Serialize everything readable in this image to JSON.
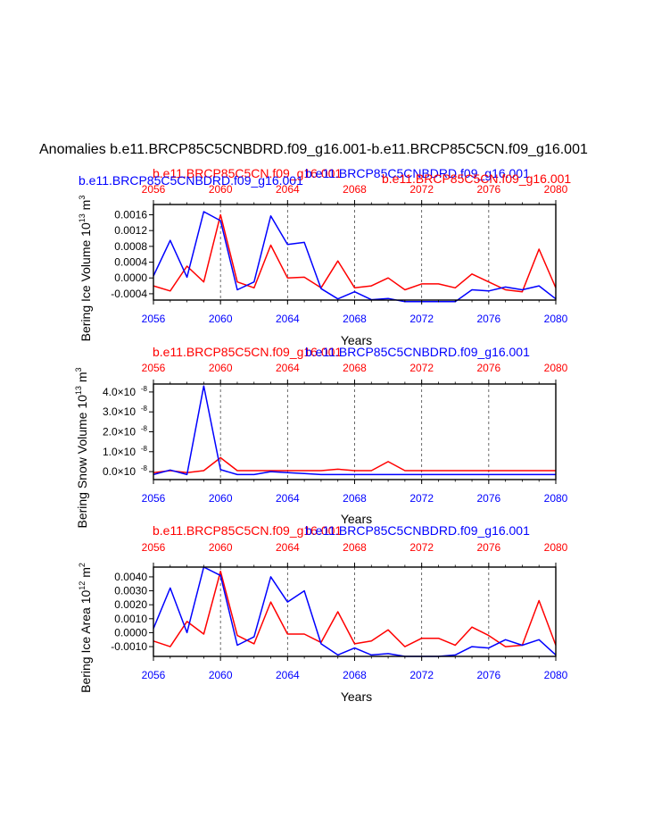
{
  "title": "Anomalies b.e11.BRCP85C5CNBDRD.f09_g16.001-b.e11.BRCP85C5CN.f09_g16.001",
  "colors": {
    "red": "#ff0000",
    "blue": "#0000ff",
    "black": "#000000",
    "grid": "#444444"
  },
  "chart_data": [
    {
      "type": "line",
      "ylabel_main": "Bering Ice Volume 10",
      "ylabel_exp": "13",
      "ylabel_unit_main": "m",
      "ylabel_unit_exp": "3",
      "xlabel": "Years",
      "xlim": [
        2056,
        2080
      ],
      "ylim": [
        -0.00056,
        0.00186
      ],
      "xticks": [
        2056,
        2060,
        2064,
        2068,
        2072,
        2076,
        2080
      ],
      "yticks": [
        -0.0004,
        0.0,
        0.0004,
        0.0008,
        0.0012,
        0.0016
      ],
      "ytick_labels": [
        "-0.0004",
        "0.0000",
        "0.0004",
        "0.0008",
        "0.0012",
        "0.0016"
      ],
      "grid_x": [
        2060,
        2064,
        2068,
        2072,
        2076
      ],
      "blue_label": "b.e11.BRCP85C5CNBDRD.f09_g16.001",
      "red_label": "b.e11.BRCP85C5CN.f09_g16.001",
      "x": [
        2056,
        2057,
        2058,
        2059,
        2060,
        2061,
        2062,
        2063,
        2064,
        2065,
        2066,
        2067,
        2068,
        2069,
        2070,
        2071,
        2072,
        2073,
        2074,
        2075,
        2076,
        2077,
        2078,
        2079,
        2080
      ],
      "series": [
        {
          "name": "b.e11.BRCP85C5CN.f09_g16.001",
          "color": "red",
          "values": [
            -0.0002,
            -0.00033,
            0.0003,
            -0.0001,
            0.0016,
            -0.0001,
            -0.00025,
            0.00083,
            0.0,
            2e-05,
            -0.00025,
            0.00043,
            -0.00025,
            -0.0002,
            0.0,
            -0.0003,
            -0.00015,
            -0.00015,
            -0.00025,
            0.0001,
            -0.0001,
            -0.0003,
            -0.00035,
            0.00073,
            -0.00025
          ]
        },
        {
          "name": "b.e11.BRCP85C5CNBDRD.f09_g16.001",
          "color": "blue",
          "values": [
            5e-05,
            0.00095,
            2e-05,
            0.00168,
            0.00145,
            -0.0003,
            -0.0001,
            0.00157,
            0.00085,
            0.0009,
            -0.00027,
            -0.00053,
            -0.00035,
            -0.00055,
            -0.00052,
            -0.0006,
            -0.0006,
            -0.0006,
            -0.0006,
            -0.0003,
            -0.00033,
            -0.00023,
            -0.0003,
            -0.0002,
            -0.00053
          ]
        }
      ]
    },
    {
      "type": "line",
      "ylabel_main": "Bering Snow Volume 10",
      "ylabel_exp": "13",
      "ylabel_unit_main": "m",
      "ylabel_unit_exp": "3",
      "xlabel": "Years",
      "xlim": [
        2056,
        2080
      ],
      "ylim": [
        -4e-09,
        4.4e-08
      ],
      "xticks": [
        2056,
        2060,
        2064,
        2068,
        2072,
        2076,
        2080
      ],
      "yticks": [
        0,
        1e-08,
        2e-08,
        3e-08,
        4e-08
      ],
      "ytick_labels": [
        "0.0×10",
        "1.0×10",
        "2.0×10",
        "3.0×10",
        "4.0×10"
      ],
      "ytick_exp": "-8",
      "grid_x": [
        2060,
        2064,
        2068,
        2072,
        2076
      ],
      "blue_label": "b.e11.BRCP85C5CNBDRD.f09_g16.001",
      "red_label": "b.e11.BRCP85C5CN.f09_g16.001",
      "x": [
        2056,
        2057,
        2058,
        2059,
        2060,
        2061,
        2062,
        2063,
        2064,
        2065,
        2066,
        2067,
        2068,
        2069,
        2070,
        2071,
        2072,
        2073,
        2074,
        2075,
        2076,
        2077,
        2078,
        2079,
        2080
      ],
      "series": [
        {
          "name": "b.e11.BRCP85C5CN.f09_g16.001",
          "color": "red",
          "values": [
            -5e-10,
            5e-10,
            -5e-10,
            5e-10,
            7e-09,
            5e-10,
            5e-10,
            5e-10,
            5e-10,
            5e-10,
            5e-10,
            1.2e-09,
            5e-10,
            5e-10,
            5e-09,
            5e-10,
            5e-10,
            5e-10,
            5e-10,
            5e-10,
            5e-10,
            5e-10,
            5e-10,
            5e-10,
            5e-10
          ]
        },
        {
          "name": "b.e11.BRCP85C5CNBDRD.f09_g16.001",
          "color": "blue",
          "values": [
            -1.5e-09,
            8e-10,
            -1.5e-09,
            4.3e-08,
            1e-09,
            -1.5e-09,
            -1.5e-09,
            0,
            -5e-10,
            -1e-09,
            -1.5e-09,
            -1.5e-09,
            -1.5e-09,
            -1.5e-09,
            -1.5e-09,
            -1.5e-09,
            -1.5e-09,
            -1.5e-09,
            -1.5e-09,
            -1.5e-09,
            -1.5e-09,
            -1.5e-09,
            -1.5e-09,
            -1.5e-09,
            -1.5e-09
          ]
        }
      ]
    },
    {
      "type": "line",
      "ylabel_main": "Bering Ice Area 10",
      "ylabel_exp": "12",
      "ylabel_unit_main": "m",
      "ylabel_unit_exp": "2",
      "xlabel": "Years",
      "xlim": [
        2056,
        2080
      ],
      "ylim": [
        -0.0017,
        0.0047
      ],
      "xticks": [
        2056,
        2060,
        2064,
        2068,
        2072,
        2076,
        2080
      ],
      "yticks": [
        -0.001,
        0.0,
        0.001,
        0.002,
        0.003,
        0.004
      ],
      "ytick_labels": [
        "-0.0010",
        "0.0000",
        "0.0010",
        "0.0020",
        "0.0030",
        "0.0040"
      ],
      "grid_x": [
        2060,
        2064,
        2068,
        2072,
        2076
      ],
      "blue_label": "b.e11.BRCP85C5CNBDRD.f09_g16.001",
      "red_label": "b.e11.BRCP85C5CN.f09_g16.001",
      "x": [
        2056,
        2057,
        2058,
        2059,
        2060,
        2061,
        2062,
        2063,
        2064,
        2065,
        2066,
        2067,
        2068,
        2069,
        2070,
        2071,
        2072,
        2073,
        2074,
        2075,
        2076,
        2077,
        2078,
        2079,
        2080
      ],
      "series": [
        {
          "name": "b.e11.BRCP85C5CN.f09_g16.001",
          "color": "red",
          "values": [
            -0.0006,
            -0.001,
            0.0008,
            -0.0001,
            0.0044,
            -0.0002,
            -0.0008,
            0.0022,
            -0.0001,
            -0.0001,
            -0.0007,
            0.0015,
            -0.0008,
            -0.0006,
            0.0002,
            -0.001,
            -0.0004,
            -0.0004,
            -0.0009,
            0.0004,
            -0.0002,
            -0.001,
            -0.0009,
            0.0023,
            -0.0009
          ]
        },
        {
          "name": "b.e11.BRCP85C5CNBDRD.f09_g16.001",
          "color": "blue",
          "values": [
            0.0003,
            0.0032,
            0.0,
            0.0047,
            0.0041,
            -0.0009,
            -0.0003,
            0.004,
            0.0022,
            0.003,
            -0.0008,
            -0.0016,
            -0.0011,
            -0.0016,
            -0.0015,
            -0.0017,
            -0.0017,
            -0.0017,
            -0.0016,
            -0.001,
            -0.0011,
            -0.0005,
            -0.0009,
            -0.0005,
            -0.0016
          ]
        }
      ]
    }
  ]
}
